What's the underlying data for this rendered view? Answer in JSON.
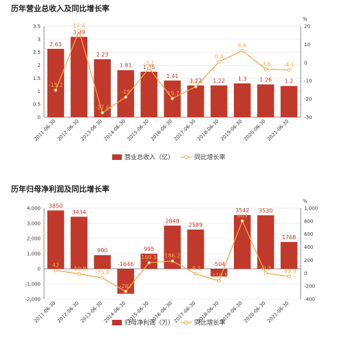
{
  "chart_data": [
    {
      "type": "bar",
      "title": "历年营业总收入及同比增长率",
      "categories": [
        "2011-06-30",
        "2012-06-30",
        "2013-06-30",
        "2014-06-30",
        "2015-06-30",
        "2016-06-30",
        "2017-06-30",
        "2018-06-30",
        "2019-06-30",
        "2020-06-30",
        "2021-06-30"
      ],
      "series": [
        {
          "name": "营业总收入（亿）",
          "type": "bar",
          "axis": "left",
          "color": "#c0392b",
          "values": [
            2.63,
            3.09,
            2.23,
            1.81,
            1.75,
            1.41,
            1.22,
            1.22,
            1.3,
            1.26,
            1.2
          ],
          "labels": [
            "2.63",
            "3.09",
            "2.23",
            "1.81",
            "1.75",
            "1.41",
            "1.22",
            "1.22",
            "1.3",
            "1.26",
            "1.2"
          ]
        },
        {
          "name": "同比增长率",
          "type": "line",
          "axis": "right",
          "color": "#f5a94c",
          "values": [
            -15.2,
            17.4,
            -27.6,
            -19,
            -3.1,
            -19.7,
            -13.3,
            0.4,
            6.6,
            -3.6,
            -4.1
          ],
          "labels": [
            "-15.2",
            "17.4",
            "-27.6",
            "-19",
            "-3.1",
            "-19.7",
            "-13.3",
            "0.4",
            "6.6",
            "-3.6",
            "-4.1"
          ]
        }
      ],
      "left_axis": {
        "ylim": [
          0,
          3.5
        ],
        "ticks": [
          "0",
          "0.5",
          "1",
          "1.5",
          "2",
          "2.5",
          "3",
          "3.5"
        ]
      },
      "right_axis": {
        "unit": "%",
        "ylim": [
          -30,
          20
        ],
        "ticks": [
          "-30",
          "-20",
          "-10",
          "0",
          "10",
          "20"
        ]
      },
      "legend_position": "bottom"
    },
    {
      "type": "bar",
      "title": "历年归母净利润及同比增长率",
      "categories": [
        "2011-06-30",
        "2012-06-30",
        "2013-06-30",
        "2014-06-30",
        "2015-06-30",
        "2016-06-30",
        "2017-06-30",
        "2018-06-30",
        "2019-06-30",
        "2020-06-30",
        "2021-06-30"
      ],
      "series": [
        {
          "name": "归母净利润（万）",
          "type": "bar",
          "axis": "left",
          "color": "#c0392b",
          "values": [
            3850,
            3434,
            900,
            -1646,
            995,
            2848,
            2589,
            -504,
            3542,
            3530,
            1768
          ],
          "labels": [
            "3850",
            "3434",
            "900",
            "-1646",
            "995",
            "2848",
            "2589",
            "-504",
            "3542",
            "3530",
            "1768"
          ]
        },
        {
          "name": "同比增长率",
          "type": "line",
          "axis": "right",
          "color": "#f5a94c",
          "values": [
            42,
            -10.8,
            -73.8,
            -282,
            160.5,
            186.2,
            -9.1,
            -119.5,
            803,
            -0.3,
            -49.9
          ],
          "labels": [
            "42",
            "-10.8",
            "-73.8",
            "-282",
            "160.5",
            "186.2",
            "-9.1",
            "-119.5",
            "803",
            "-0.3",
            "-49.9"
          ]
        }
      ],
      "left_axis": {
        "ylim": [
          -2000,
          4000
        ],
        "ticks": [
          "-2,000",
          "-1,000",
          "0",
          "1,000",
          "2,000",
          "3,000",
          "4,000"
        ]
      },
      "right_axis": {
        "unit": "%",
        "ylim": [
          -400,
          1000
        ],
        "ticks": [
          "-400",
          "-200",
          "0",
          "200",
          "400",
          "600",
          "800",
          "1,000"
        ]
      },
      "legend_position": "bottom"
    }
  ]
}
